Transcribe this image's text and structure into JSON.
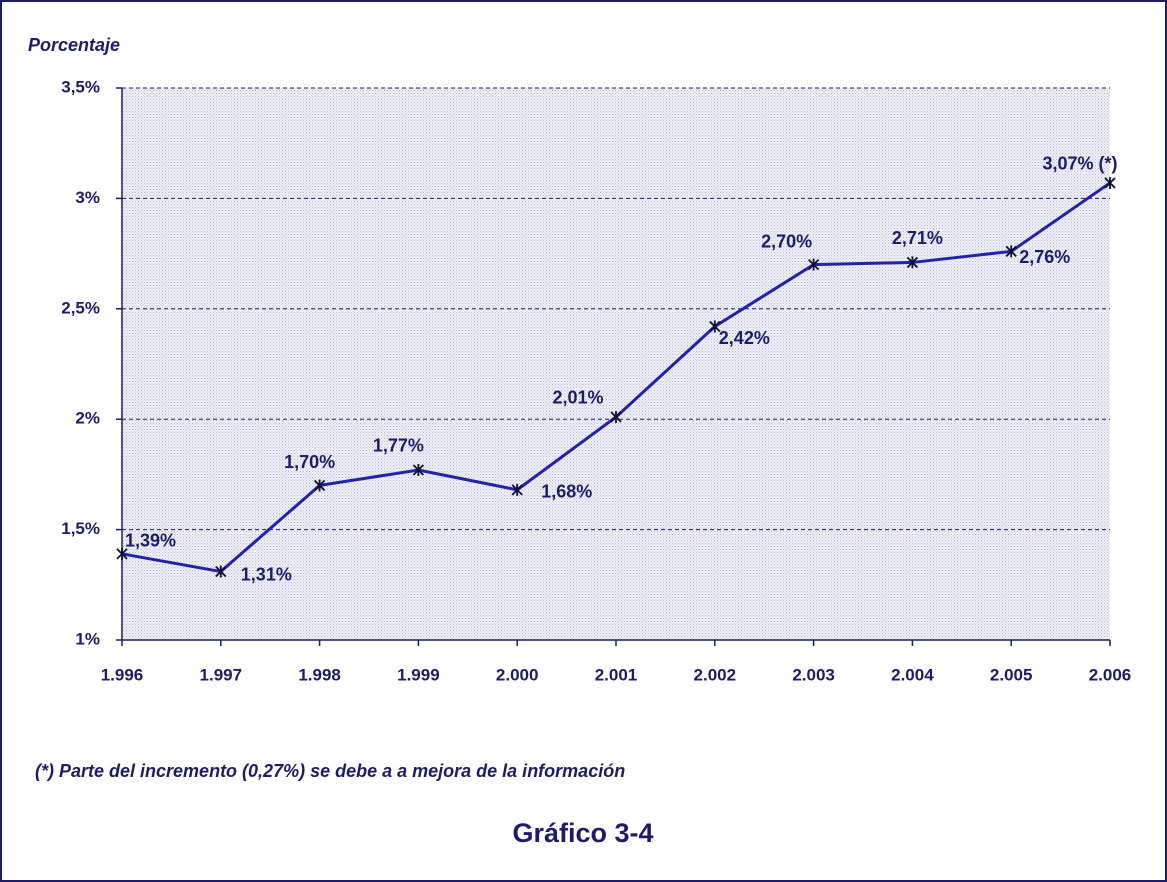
{
  "chart_data": {
    "type": "line",
    "y_label": "Porcentaje",
    "footnote": "(*) Parte del incremento (0,27%) se debe a  a mejora de la información",
    "caption": "Gráfico 3-4",
    "categories": [
      "1.996",
      "1.997",
      "1.998",
      "1.999",
      "2.000",
      "2.001",
      "2.002",
      "2.003",
      "2.004",
      "2.005",
      "2.006"
    ],
    "series": [
      {
        "name": "Porcentaje",
        "color": "#2323a8",
        "values": [
          1.39,
          1.31,
          1.7,
          1.77,
          1.68,
          2.01,
          2.42,
          2.7,
          2.71,
          2.76,
          3.07
        ],
        "value_labels": [
          "1,39%",
          "1,31%",
          "1,70%",
          "1,77%",
          "1,68%",
          "2,01%",
          "2,42%",
          "2,70%",
          "2,71%",
          "2,76%",
          "3,07% (*)"
        ]
      }
    ],
    "ylim": [
      1,
      3.5
    ],
    "yticks": [
      {
        "value": 1,
        "label": "1%"
      },
      {
        "value": 1.5,
        "label": "1,5%"
      },
      {
        "value": 2,
        "label": "2%"
      },
      {
        "value": 2.5,
        "label": "2,5%"
      },
      {
        "value": 3,
        "label": "3%"
      },
      {
        "value": 3.5,
        "label": "3,5%"
      }
    ],
    "grid": true
  }
}
